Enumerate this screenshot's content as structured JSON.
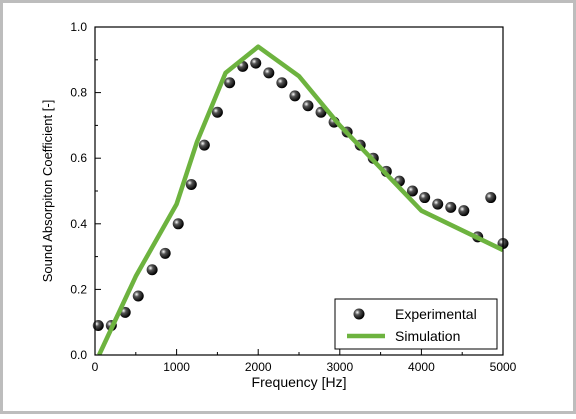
{
  "chart_data": {
    "type": "line",
    "x_label": "Frequency [Hz]",
    "y_label": "Sound Absorpiton Coefficient [-]",
    "xlim": [
      0,
      5000
    ],
    "xticks": [
      0,
      1000,
      2000,
      3000,
      4000,
      5000
    ],
    "ylim": [
      0,
      1
    ],
    "yticks": [
      {
        "value": 0,
        "label": "0.0"
      },
      0.2,
      0.4,
      0.6,
      0.8,
      {
        "value": 1,
        "label": "1.0"
      }
    ],
    "legend": "lower right",
    "series": [
      {
        "name": "Experimental",
        "kind": "scatter",
        "color": "#000000",
        "x": [
          40,
          200,
          370,
          530,
          700,
          860,
          1020,
          1180,
          1340,
          1500,
          1650,
          1810,
          1970,
          2130,
          2290,
          2450,
          2610,
          2770,
          2930,
          3090,
          3250,
          3410,
          3570,
          3730,
          3890,
          4040,
          4200,
          4360,
          4520,
          4690,
          4850,
          5000
        ],
        "values": [
          0.09,
          0.09,
          0.13,
          0.18,
          0.26,
          0.31,
          0.4,
          0.52,
          0.64,
          0.74,
          0.83,
          0.88,
          0.89,
          0.86,
          0.83,
          0.79,
          0.76,
          0.74,
          0.71,
          0.68,
          0.64,
          0.6,
          0.56,
          0.53,
          0.5,
          0.48,
          0.46,
          0.45,
          0.44,
          0.36,
          0.48,
          0.34
        ]
      },
      {
        "name": "Simulation",
        "kind": "line",
        "color": "#6db33f",
        "x": [
          50,
          500,
          1000,
          1250,
          1600,
          2000,
          2500,
          3000,
          4000,
          5000
        ],
        "values": [
          0,
          0.24,
          0.46,
          0.65,
          0.86,
          0.94,
          0.85,
          0.7,
          0.44,
          0.32
        ]
      }
    ]
  }
}
